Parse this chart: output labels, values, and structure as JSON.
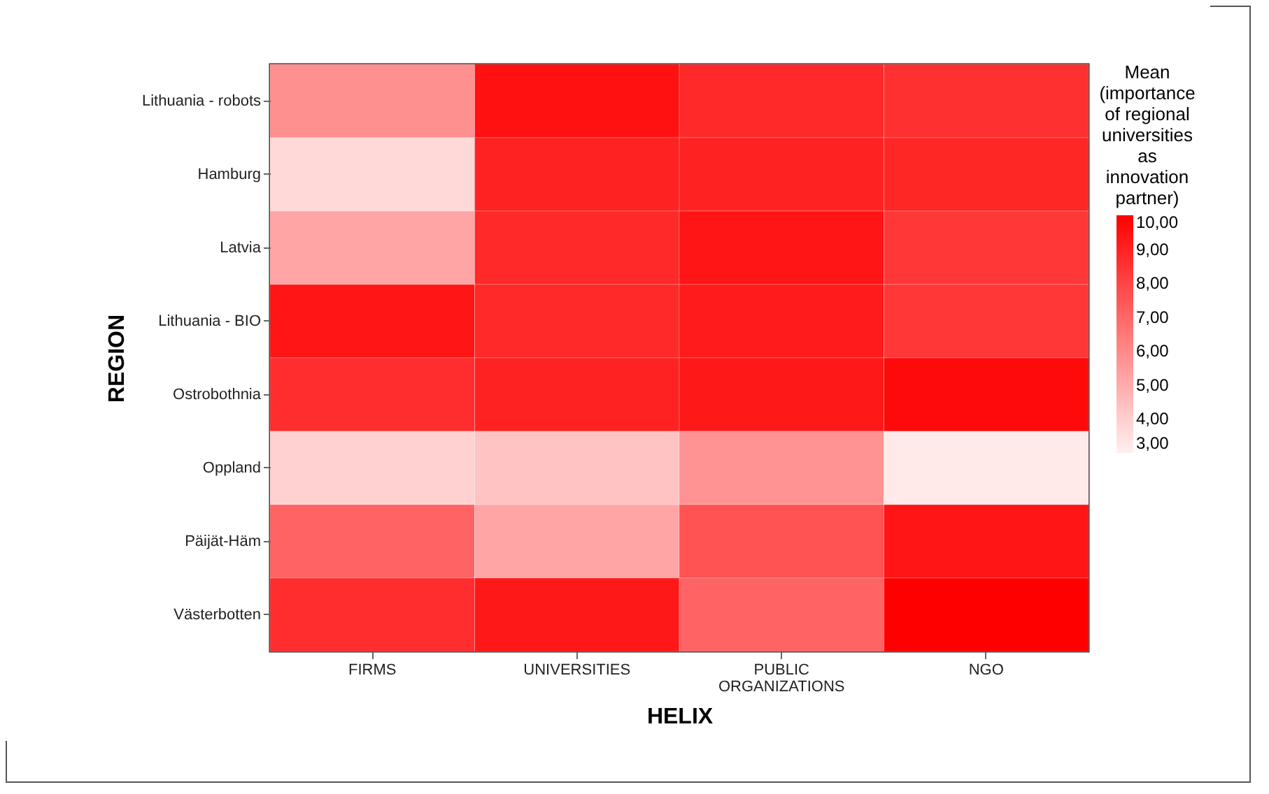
{
  "chart_data": {
    "type": "heatmap",
    "xlabel": "HELIX",
    "ylabel": "REGION",
    "legend_title": "Mean (importance of regional universities as innovation partner)",
    "categories": [
      "FIRMS",
      "UNIVERSITIES",
      "PUBLIC ORGANIZATIONS",
      "NGO"
    ],
    "y_categories": [
      "Lithuania - robots",
      "Hamburg",
      "Latvia",
      "Lithuania - BIO",
      "Ostrobothnia",
      "Oppland",
      "Päijät-Häm",
      "Västerbotten"
    ],
    "cells": [
      [
        5.8,
        9.5,
        8.8,
        8.6
      ],
      [
        3.7,
        9.0,
        9.0,
        8.9
      ],
      [
        5.2,
        8.8,
        9.4,
        8.4
      ],
      [
        9.4,
        8.8,
        9.2,
        8.4
      ],
      [
        8.7,
        9.0,
        9.3,
        9.7
      ],
      [
        3.9,
        4.3,
        5.7,
        3.2
      ],
      [
        7.1,
        5.2,
        7.6,
        9.4
      ],
      [
        8.7,
        9.3,
        7.1,
        10.0
      ]
    ],
    "clim": [
      3,
      10
    ],
    "cticks": [
      {
        "value": 10,
        "label": "10,00"
      },
      {
        "value": 9,
        "label": "9,00"
      },
      {
        "value": 8,
        "label": "8,00"
      },
      {
        "value": 7,
        "label": "7,00"
      },
      {
        "value": 6,
        "label": "6,00"
      },
      {
        "value": 5,
        "label": "5,00"
      },
      {
        "value": 4,
        "label": "4,00"
      },
      {
        "value": 3,
        "label": "3,00"
      }
    ]
  }
}
